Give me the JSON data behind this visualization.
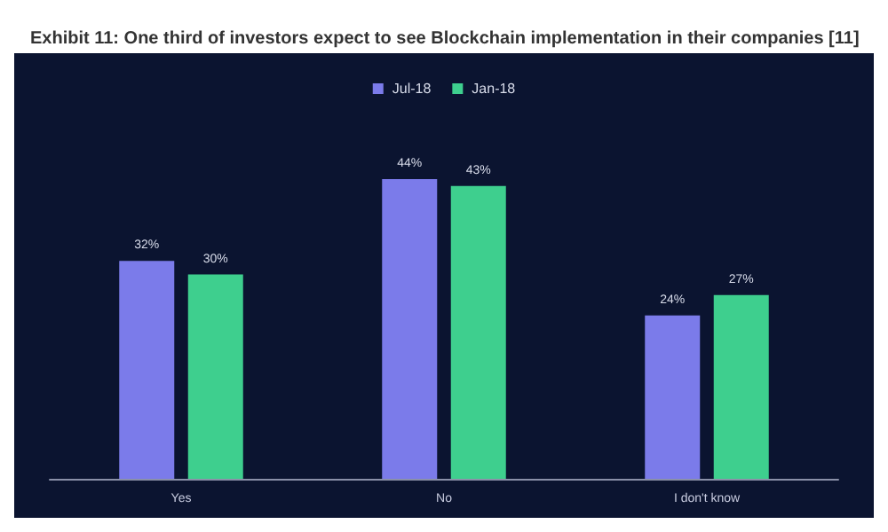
{
  "chart_data": {
    "type": "bar",
    "title": "Exhibit 11: One third of investors expect to see Blockchain implementation in their companies [11]",
    "categories": [
      "Yes",
      "No",
      "I don't know"
    ],
    "series": [
      {
        "name": "Jul-18",
        "color": "#7b7bea",
        "values": [
          32,
          44,
          24
        ],
        "value_labels": [
          "32%",
          "44%",
          "24%"
        ]
      },
      {
        "name": "Jan-18",
        "color": "#3ecf8e",
        "values": [
          30,
          43,
          27
        ],
        "value_labels": [
          "30%",
          "43%",
          "27%"
        ]
      }
    ],
    "legend": "top"
  }
}
